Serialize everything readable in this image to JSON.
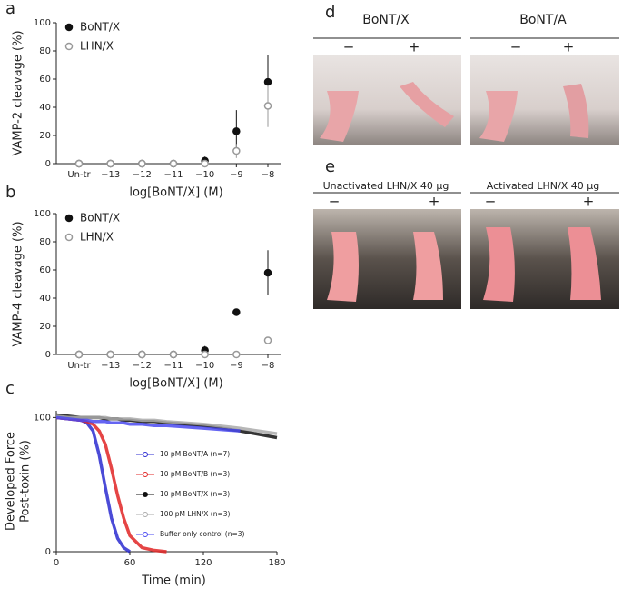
{
  "chart_data": [
    {
      "type": "dot",
      "ylabel": "VAMP-2 cleavage (%)",
      "xlabel": "log[BoNT/X] (M)",
      "categories": [
        "Un-tr",
        "−13",
        "−12",
        "−11",
        "−10",
        "−9",
        "−8"
      ],
      "ylim": [
        0,
        100
      ],
      "yticks": [
        0,
        20,
        40,
        60,
        80,
        100
      ],
      "legend": "upper left",
      "series": [
        {
          "name": "BoNT/X",
          "color": "#111111",
          "marker": "filled",
          "values": [
            0,
            0,
            0,
            0,
            2,
            23,
            58
          ],
          "errors": [
            0,
            0,
            0,
            0,
            3,
            15,
            19
          ]
        },
        {
          "name": "LHN/X",
          "color": "#999999",
          "marker": "open",
          "values": [
            0,
            0,
            0,
            0,
            0,
            9,
            41
          ],
          "errors": [
            0,
            0,
            0,
            0,
            1,
            5,
            15
          ]
        }
      ]
    },
    {
      "type": "dot",
      "ylabel": "VAMP-4 cleavage (%)",
      "xlabel": "log[BoNT/X] (M)",
      "categories": [
        "Un-tr",
        "−13",
        "−12",
        "−11",
        "−10",
        "−9",
        "−8"
      ],
      "ylim": [
        0,
        100
      ],
      "yticks": [
        0,
        20,
        40,
        60,
        80,
        100
      ],
      "legend": "upper left",
      "series": [
        {
          "name": "BoNT/X",
          "color": "#111111",
          "marker": "filled",
          "values": [
            0,
            0,
            0,
            0,
            3,
            30,
            58
          ],
          "errors": [
            0,
            0,
            0,
            0,
            3,
            2,
            16
          ]
        },
        {
          "name": "LHN/X",
          "color": "#999999",
          "marker": "open",
          "values": [
            0,
            0,
            0,
            0,
            0,
            0,
            10
          ],
          "errors": [
            0,
            0,
            0,
            0,
            0,
            0,
            0
          ]
        }
      ]
    },
    {
      "type": "line",
      "ylabel": [
        "Developed Force",
        "Post-toxin (%)"
      ],
      "xlabel": "Time (min)",
      "x": [
        0,
        10,
        20,
        25,
        30,
        35,
        40,
        45,
        50,
        55,
        60,
        70,
        80,
        90,
        120,
        150,
        180
      ],
      "xlim": [
        0,
        180
      ],
      "xticks": [
        0,
        60,
        120,
        180
      ],
      "ylim": [
        0,
        105
      ],
      "yticks": [
        0,
        100
      ],
      "legend": "center right",
      "series": [
        {
          "name": "10 pM BoNT/A (n=7)",
          "color": "#2b2bd0",
          "values": [
            100,
            99,
            98,
            96,
            90,
            72,
            48,
            25,
            10,
            3,
            0,
            null,
            null,
            null,
            null,
            null,
            null
          ]
        },
        {
          "name": "10 pM BoNT/B (n=3)",
          "color": "#e02424",
          "values": [
            100,
            99,
            98,
            97,
            95,
            90,
            80,
            62,
            42,
            25,
            12,
            3,
            1,
            0,
            null,
            null,
            null
          ]
        },
        {
          "name": "10 pM BoNT/X (n=3)",
          "color": "#111111",
          "values": [
            102,
            101,
            100,
            100,
            100,
            100,
            99,
            99,
            99,
            98,
            98,
            97,
            97,
            96,
            94,
            90,
            85
          ]
        },
        {
          "name": "100 pM LHN/X (n=3)",
          "color": "#aaaaaa",
          "values": [
            101,
            100,
            100,
            100,
            100,
            100,
            100,
            99,
            99,
            99,
            99,
            98,
            98,
            97,
            95,
            92,
            88
          ]
        },
        {
          "name": "Buffer only control (n=3)",
          "color": "#4a4af0",
          "values": [
            100,
            99,
            98,
            98,
            97,
            97,
            97,
            96,
            96,
            96,
            95,
            95,
            94,
            94,
            92,
            90,
            null
          ]
        }
      ]
    }
  ],
  "panel_labels": [
    "a",
    "b",
    "c",
    "d",
    "e"
  ],
  "photos": {
    "d": {
      "columns": [
        "BoNT/X",
        "BoNT/A"
      ],
      "signs": [
        "−",
        "+"
      ]
    },
    "e": {
      "columns": [
        "Unactivated LHN/X  40 µg",
        "Activated LHN/X  40 µg"
      ],
      "signs": [
        "−",
        "+"
      ]
    }
  }
}
